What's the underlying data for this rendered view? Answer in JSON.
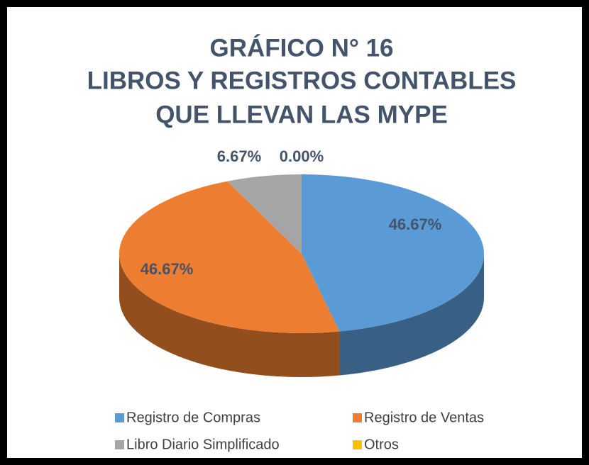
{
  "chart_data": {
    "type": "pie3d",
    "title": [
      "GRÁFICO N° 16",
      "LIBROS Y REGISTROS CONTABLES",
      "QUE LLEVAN LAS MYPE"
    ],
    "categories": [
      "Registro de Compras",
      "Registro de Ventas",
      "Libro Diario Simplificado",
      "Otros"
    ],
    "values": [
      46.67,
      46.67,
      6.67,
      0.0
    ],
    "value_labels": [
      "46.67%",
      "46.67%",
      "6.67%",
      "0.00%"
    ],
    "colors": [
      "#5b9bd5",
      "#ed7d31",
      "#a5a5a5",
      "#ffc000"
    ],
    "legend": "bottom"
  }
}
